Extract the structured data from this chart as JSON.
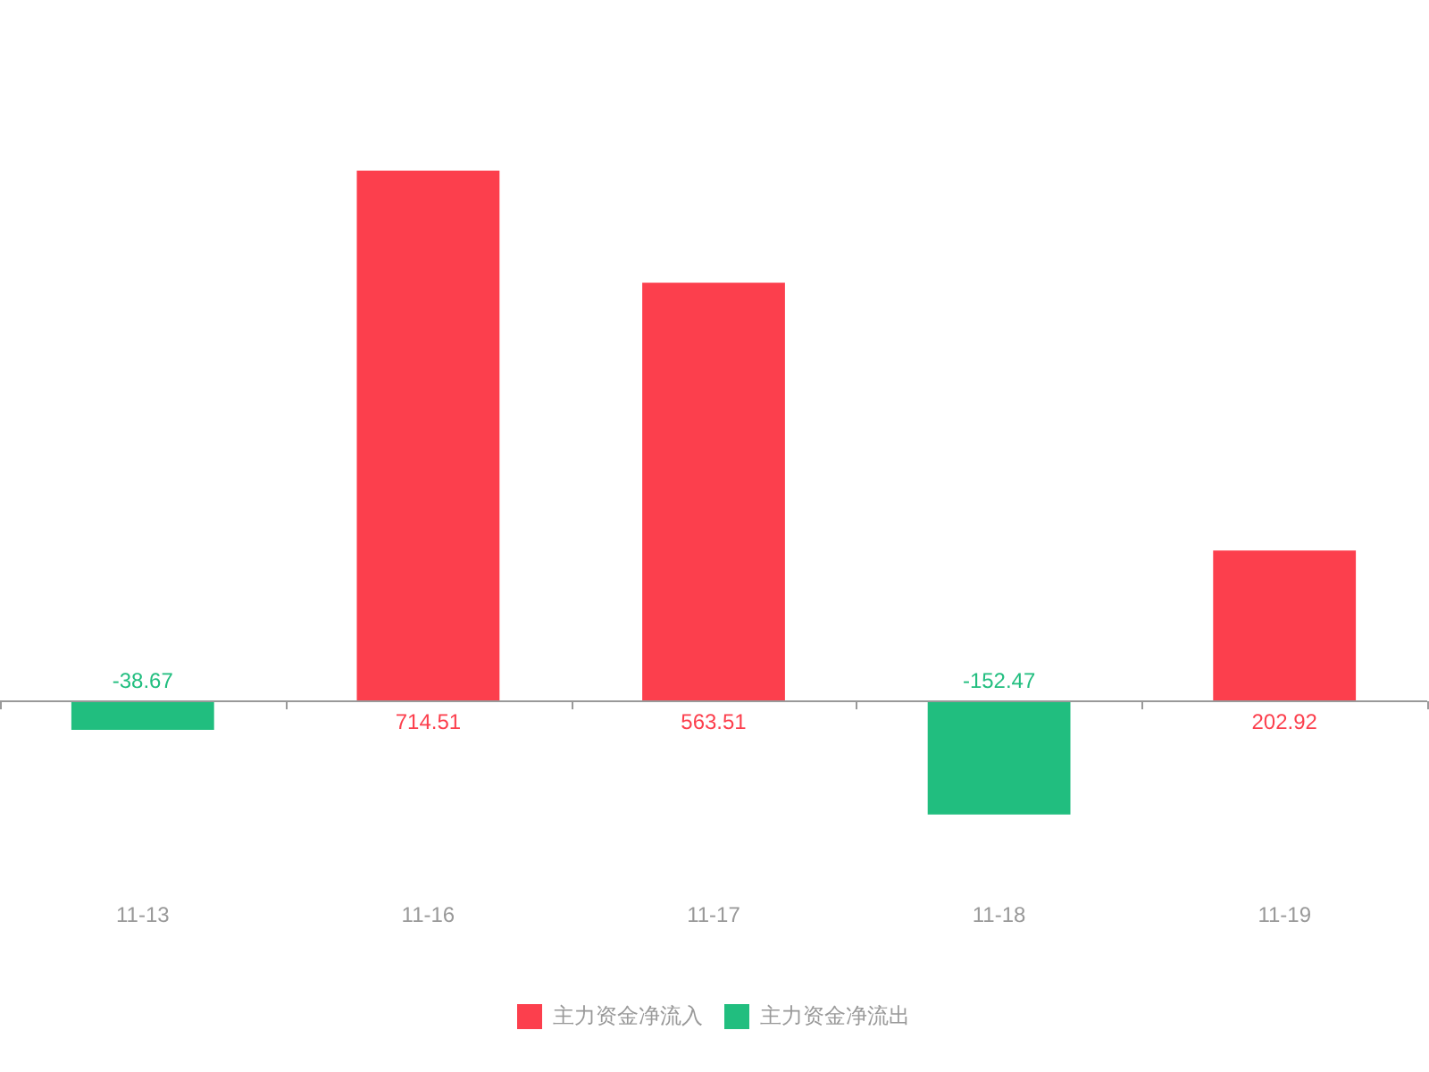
{
  "chart_data": {
    "type": "bar",
    "categories": [
      "11-13",
      "11-16",
      "11-17",
      "11-18",
      "11-19"
    ],
    "series": [
      {
        "name": "主力资金净流入",
        "color": "#fc3f4d",
        "values": [
          null,
          714.51,
          563.51,
          null,
          202.92
        ]
      },
      {
        "name": "主力资金净流出",
        "color": "#21be7f",
        "values": [
          -38.67,
          null,
          null,
          -152.47,
          null
        ]
      }
    ],
    "stacked": true,
    "data_labels": true,
    "legend": "bottom"
  }
}
